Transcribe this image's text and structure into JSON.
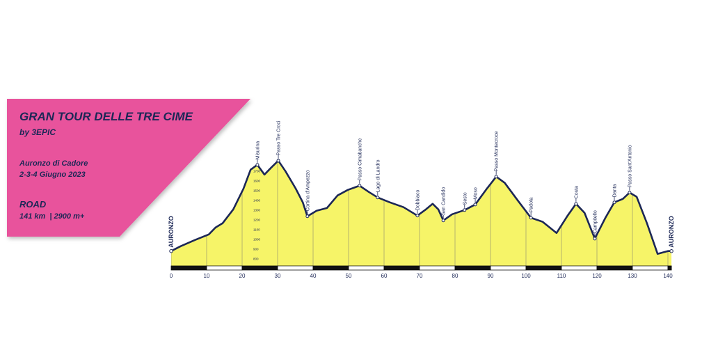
{
  "panel": {
    "title": "GRAN TOUR DELLE TRE CIME",
    "subtitle": "by 3EPIC",
    "location": "Auronzo di Cadore",
    "dates": "2-3-4 Giugno 2023",
    "category": "ROAD",
    "stats": "141 km  | 2900 m+"
  },
  "chart_data": {
    "type": "area",
    "color": "#f6f468",
    "line_color": "#1c2756",
    "x": [
      0,
      2.7,
      6.7,
      10.6,
      12.5,
      14.5,
      17.5,
      20.4,
      22.4,
      24.3,
      26.3,
      28.2,
      30.2,
      32.2,
      35.1,
      37.1,
      38.4,
      41,
      43.9,
      46.9,
      49.8,
      53.1,
      55.7,
      58.2,
      61.6,
      65.5,
      69.4,
      71.8,
      73.7,
      75.3,
      76.7,
      79.2,
      82.7,
      85.7,
      89,
      91.6,
      94,
      97.8,
      101.4,
      104.7,
      108.6,
      111.6,
      114.1,
      116.5,
      119.4,
      122.4,
      124.9,
      127.3,
      129.2,
      131.2,
      134.1,
      137.1,
      140,
      141
    ],
    "values": [
      879,
      929,
      993,
      1050,
      1121,
      1164,
      1307,
      1521,
      1714,
      1764,
      1664,
      1736,
      1807,
      1700,
      1521,
      1379,
      1236,
      1293,
      1321,
      1450,
      1507,
      1550,
      1486,
      1429,
      1379,
      1329,
      1243,
      1307,
      1364,
      1307,
      1193,
      1257,
      1300,
      1357,
      1521,
      1643,
      1579,
      1393,
      1221,
      1179,
      1064,
      1236,
      1364,
      1271,
      1007,
      1221,
      1379,
      1414,
      1479,
      1436,
      1164,
      850,
      879,
      879
    ],
    "xlim": [
      0,
      141
    ],
    "xticks": [
      0,
      10,
      20,
      30,
      40,
      50,
      60,
      70,
      80,
      90,
      100,
      110,
      120,
      130,
      140
    ],
    "ylim": [
      720,
      1850
    ],
    "yticks": [
      800,
      900,
      1000,
      1100,
      1200,
      1300,
      1400,
      1500,
      1600,
      1700
    ],
    "start_label": "AURONZO",
    "end_label": "AURONZO",
    "annotations": [
      {
        "label": "Misurina",
        "x": 24.3,
        "y": 1764
      },
      {
        "label": "Passo Tre Croci",
        "x": 30.2,
        "y": 1807
      },
      {
        "label": "Cortina d'Ampezzo",
        "x": 38.4,
        "y": 1236
      },
      {
        "label": "Passo Cimabanche",
        "x": 53.1,
        "y": 1550
      },
      {
        "label": "Lago di Landro",
        "x": 58.2,
        "y": 1429
      },
      {
        "label": "Dobbiaco",
        "x": 69.4,
        "y": 1243
      },
      {
        "label": "San Candido",
        "x": 76.7,
        "y": 1193
      },
      {
        "label": "Sesto",
        "x": 82.7,
        "y": 1300
      },
      {
        "label": "Moso",
        "x": 85.7,
        "y": 1357
      },
      {
        "label": "Passo Montecroce",
        "x": 91.6,
        "y": 1643
      },
      {
        "label": "Padola",
        "x": 101.4,
        "y": 1221
      },
      {
        "label": "Costa",
        "x": 114.1,
        "y": 1364
      },
      {
        "label": "Campitello",
        "x": 119.4,
        "y": 1007
      },
      {
        "label": "Danta",
        "x": 124.9,
        "y": 1379
      },
      {
        "label": "Passo Sant'Antonio",
        "x": 129.2,
        "y": 1479
      }
    ]
  }
}
